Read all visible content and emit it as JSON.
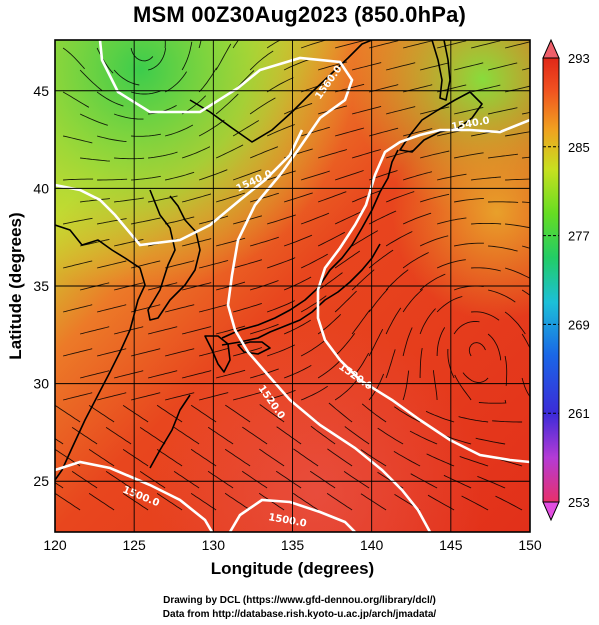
{
  "title": "MSM 00Z30Aug2023 (850.0hPa)",
  "x_axis": {
    "label": "Longitude (degrees)",
    "range": [
      120,
      150
    ],
    "ticks": [
      120,
      125,
      130,
      135,
      140,
      145,
      150
    ]
  },
  "y_axis": {
    "label": "Latitude  (degrees)",
    "range": [
      22.4,
      47.6
    ],
    "ticks": [
      25,
      30,
      35,
      40,
      45
    ]
  },
  "colorbar": {
    "range": [
      253,
      293
    ],
    "ticks": [
      "293",
      "285",
      "277",
      "269",
      "261",
      "253"
    ],
    "colors": [
      "#e8306a",
      "#b43bd6",
      "#3b2bd8",
      "#1a66e6",
      "#1cc0d8",
      "#22cc66",
      "#66dd22",
      "#c8e020",
      "#f0a020",
      "#f05020",
      "#e02818"
    ]
  },
  "contours": {
    "labels": [
      "1560.0",
      "1540.0",
      "1520.0",
      "1520.0",
      "1500.0",
      "1500.0",
      "1540.0"
    ]
  },
  "credits": {
    "line1": "Drawing by DCL (https://www.gfd-dennou.org/library/dcl/)",
    "line2": "Data from http://database.rish.kyoto-u.ac.jp/arch/jmadata/"
  }
}
